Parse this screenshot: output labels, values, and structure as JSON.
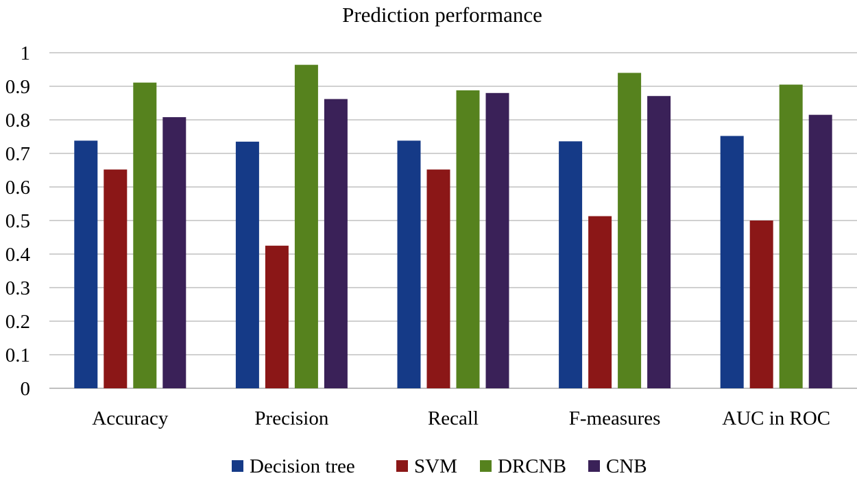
{
  "chart_data": {
    "type": "bar",
    "title": "Prediction performance",
    "xlabel": "",
    "ylabel": "",
    "categories": [
      "Accuracy",
      "Precision",
      "Recall",
      "F-measures",
      "AUC in ROC"
    ],
    "series": [
      {
        "name": "Decision tree",
        "color": "#153A87",
        "values": [
          0.738,
          0.735,
          0.738,
          0.736,
          0.752
        ]
      },
      {
        "name": "SVM",
        "color": "#8B1717",
        "values": [
          0.652,
          0.425,
          0.652,
          0.513,
          0.5
        ]
      },
      {
        "name": "DRCNB",
        "color": "#56821E",
        "values": [
          0.911,
          0.964,
          0.888,
          0.94,
          0.905
        ]
      },
      {
        "name": "CNB",
        "color": "#3A2158",
        "values": [
          0.808,
          0.862,
          0.88,
          0.871,
          0.815
        ]
      }
    ],
    "ylim": [
      0,
      1
    ],
    "yticks": [
      "0",
      "0.1",
      "0.2",
      "0.3",
      "0.4",
      "0.5",
      "0.6",
      "0.7",
      "0.8",
      "0.9",
      "1"
    ],
    "grid": true,
    "legend_position": "bottom"
  }
}
